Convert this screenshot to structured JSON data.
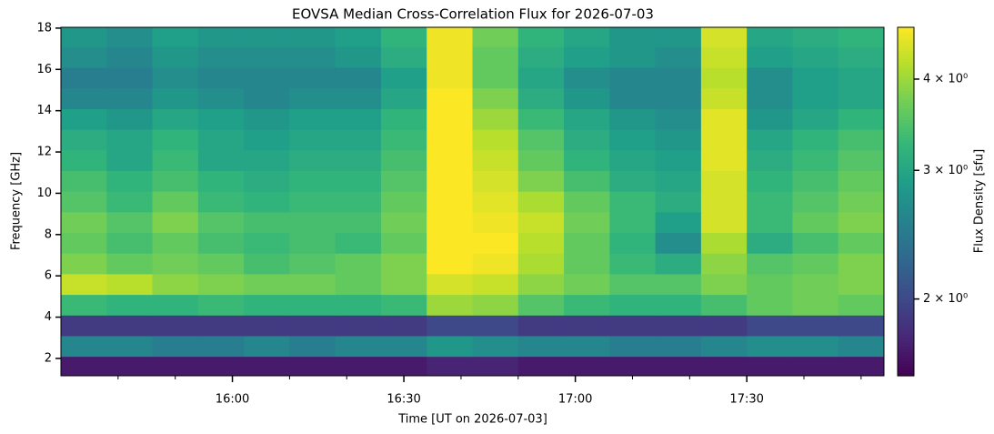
{
  "chart_data": {
    "type": "heatmap",
    "title": "EOVSA Median Cross-Correlation Flux for 2026-07-03",
    "x_label": "Time [UT on 2026-07-03]",
    "y_label": "Frequency [GHz]",
    "colorbar_label": "Flux Density [sfu]",
    "colormap": "viridis",
    "color_scale": "log",
    "xlim": [
      "15:30",
      "17:54"
    ],
    "xticks": [
      "16:00",
      "16:30",
      "17:00",
      "17:30"
    ],
    "xminor_ticks": [
      "15:40",
      "15:50",
      "16:10",
      "16:20",
      "16:40",
      "16:50",
      "17:10",
      "17:20",
      "17:40",
      "17:50"
    ],
    "ylim": [
      1.16,
      18.04
    ],
    "yticks": [
      2,
      4,
      6,
      8,
      10,
      12,
      14,
      16,
      18
    ],
    "clim": [
      1.57,
      4.71
    ],
    "cticks": [
      {
        "value": 2,
        "label": "2 × 10⁰"
      },
      {
        "value": 3,
        "label": "3 × 10⁰"
      },
      {
        "value": 4,
        "label": "4 × 10⁰"
      }
    ],
    "x_edges": [
      "15:30",
      "15:38",
      "15:46",
      "15:54",
      "16:02",
      "16:10",
      "16:18",
      "16:26",
      "16:34",
      "16:42",
      "16:50",
      "16:58",
      "17:06",
      "17:14",
      "17:22",
      "17:30",
      "17:38",
      "17:46",
      "17:54"
    ],
    "y_edges": [
      1.16,
      2.1,
      3.1,
      4.1,
      5.1,
      6.1,
      7.1,
      8.1,
      9.1,
      10.1,
      11.1,
      12.1,
      13.1,
      14.1,
      15.1,
      16.1,
      17.1,
      18.04
    ],
    "z": [
      [
        1.7,
        1.7,
        1.7,
        1.7,
        1.7,
        1.7,
        1.7,
        1.7,
        1.75,
        1.75,
        1.7,
        1.7,
        1.7,
        1.7,
        1.7,
        1.7,
        1.7,
        1.7
      ],
      [
        2.6,
        2.6,
        2.5,
        2.5,
        2.6,
        2.5,
        2.6,
        2.6,
        2.8,
        2.7,
        2.6,
        2.6,
        2.5,
        2.5,
        2.6,
        2.7,
        2.7,
        2.6
      ],
      [
        1.9,
        1.9,
        1.9,
        1.9,
        1.9,
        1.9,
        1.9,
        1.9,
        2.0,
        2.0,
        1.9,
        1.9,
        1.9,
        1.9,
        1.9,
        2.0,
        2.0,
        2.0
      ],
      [
        3.3,
        3.2,
        3.2,
        3.3,
        3.2,
        3.2,
        3.2,
        3.3,
        4.0,
        3.9,
        3.5,
        3.3,
        3.2,
        3.2,
        3.4,
        3.6,
        3.7,
        3.6
      ],
      [
        4.3,
        4.2,
        3.9,
        3.8,
        3.7,
        3.7,
        3.6,
        3.8,
        4.4,
        4.3,
        3.9,
        3.7,
        3.5,
        3.5,
        3.8,
        3.6,
        3.7,
        3.8
      ],
      [
        3.8,
        3.6,
        3.7,
        3.6,
        3.4,
        3.5,
        3.6,
        3.8,
        4.7,
        4.6,
        4.1,
        3.6,
        3.3,
        3.1,
        3.9,
        3.5,
        3.6,
        3.8
      ],
      [
        3.6,
        3.4,
        3.6,
        3.4,
        3.3,
        3.4,
        3.3,
        3.6,
        4.7,
        4.7,
        4.2,
        3.6,
        3.2,
        2.7,
        4.1,
        3.1,
        3.4,
        3.6
      ],
      [
        3.7,
        3.5,
        3.8,
        3.5,
        3.4,
        3.4,
        3.4,
        3.7,
        4.7,
        4.6,
        4.3,
        3.7,
        3.3,
        2.9,
        4.4,
        3.3,
        3.6,
        3.8
      ],
      [
        3.5,
        3.3,
        3.6,
        3.3,
        3.2,
        3.3,
        3.3,
        3.6,
        4.7,
        4.5,
        4.1,
        3.6,
        3.3,
        3.1,
        4.4,
        3.3,
        3.5,
        3.7
      ],
      [
        3.4,
        3.2,
        3.4,
        3.2,
        3.1,
        3.2,
        3.2,
        3.5,
        4.7,
        4.4,
        3.8,
        3.4,
        3.1,
        3.0,
        4.4,
        3.2,
        3.4,
        3.6
      ],
      [
        3.2,
        3.0,
        3.3,
        3.0,
        3.0,
        3.1,
        3.1,
        3.4,
        4.7,
        4.3,
        3.6,
        3.2,
        3.0,
        2.9,
        4.5,
        3.1,
        3.3,
        3.5
      ],
      [
        3.1,
        3.0,
        3.2,
        3.0,
        2.9,
        3.0,
        3.0,
        3.3,
        4.7,
        4.2,
        3.5,
        3.1,
        2.9,
        2.8,
        4.5,
        3.0,
        3.2,
        3.4
      ],
      [
        2.9,
        2.8,
        3.0,
        2.9,
        2.8,
        2.9,
        2.9,
        3.2,
        4.7,
        4.0,
        3.3,
        3.0,
        2.8,
        2.7,
        4.5,
        2.8,
        3.0,
        3.2
      ],
      [
        2.6,
        2.6,
        2.8,
        2.7,
        2.6,
        2.7,
        2.7,
        3.0,
        4.7,
        3.8,
        3.1,
        2.8,
        2.6,
        2.6,
        4.3,
        2.7,
        2.9,
        3.0
      ],
      [
        2.5,
        2.5,
        2.7,
        2.6,
        2.6,
        2.6,
        2.6,
        2.9,
        4.6,
        3.6,
        3.0,
        2.7,
        2.6,
        2.6,
        4.2,
        2.7,
        2.9,
        3.0
      ],
      [
        2.7,
        2.6,
        2.8,
        2.7,
        2.7,
        2.7,
        2.8,
        3.1,
        4.6,
        3.6,
        3.1,
        2.9,
        2.8,
        2.7,
        4.3,
        2.9,
        3.0,
        3.1
      ],
      [
        2.8,
        2.7,
        2.9,
        2.8,
        2.8,
        2.8,
        2.9,
        3.2,
        4.6,
        3.7,
        3.2,
        3.0,
        2.8,
        2.8,
        4.4,
        3.0,
        3.1,
        3.2
      ]
    ]
  }
}
